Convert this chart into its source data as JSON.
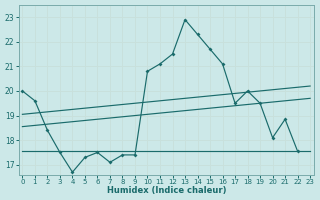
{
  "title": "",
  "xlabel": "Humidex (Indice chaleur)",
  "bg_color": "#cce8e8",
  "grid_color": "#d4e8e0",
  "line_color": "#1a6b6b",
  "x_ticks": [
    0,
    1,
    2,
    3,
    4,
    5,
    6,
    7,
    8,
    9,
    10,
    11,
    12,
    13,
    14,
    15,
    16,
    17,
    18,
    19,
    20,
    21,
    22,
    23
  ],
  "y_ticks": [
    17,
    18,
    19,
    20,
    21,
    22,
    23
  ],
  "ylim": [
    16.6,
    23.5
  ],
  "xlim": [
    -0.3,
    23.3
  ],
  "series": [
    {
      "name": "main_curve",
      "x": [
        0,
        1,
        2,
        3,
        4,
        5,
        6,
        7,
        8,
        9,
        10,
        11,
        12,
        13,
        14,
        15,
        16,
        17,
        18,
        19,
        20,
        21,
        22
      ],
      "y": [
        20.0,
        19.6,
        18.4,
        17.5,
        16.7,
        17.3,
        17.5,
        17.1,
        17.4,
        17.4,
        20.8,
        21.1,
        21.5,
        22.9,
        22.3,
        21.7,
        21.1,
        19.5,
        20.0,
        19.5,
        18.1,
        18.85,
        17.55
      ]
    },
    {
      "name": "upper_line",
      "x": [
        0,
        1,
        2,
        3,
        4,
        5,
        6,
        7,
        8,
        9,
        10,
        11,
        12,
        13,
        14,
        15,
        16,
        17,
        18,
        19,
        20,
        21,
        22,
        23
      ],
      "y": [
        19.05,
        19.1,
        19.15,
        19.2,
        19.25,
        19.3,
        19.35,
        19.4,
        19.45,
        19.5,
        19.55,
        19.6,
        19.65,
        19.7,
        19.75,
        19.8,
        19.85,
        19.9,
        19.95,
        20.0,
        20.05,
        20.1,
        20.15,
        20.2
      ]
    },
    {
      "name": "middle_line",
      "x": [
        0,
        1,
        2,
        3,
        4,
        5,
        6,
        7,
        8,
        9,
        10,
        11,
        12,
        13,
        14,
        15,
        16,
        17,
        18,
        19,
        20,
        21,
        22,
        23
      ],
      "y": [
        18.55,
        18.6,
        18.65,
        18.7,
        18.75,
        18.8,
        18.85,
        18.9,
        18.95,
        19.0,
        19.05,
        19.1,
        19.15,
        19.2,
        19.25,
        19.3,
        19.35,
        19.4,
        19.45,
        19.5,
        19.55,
        19.6,
        19.65,
        19.7
      ]
    },
    {
      "name": "flat_line",
      "x": [
        0,
        23
      ],
      "y": [
        17.55,
        17.55
      ]
    }
  ]
}
